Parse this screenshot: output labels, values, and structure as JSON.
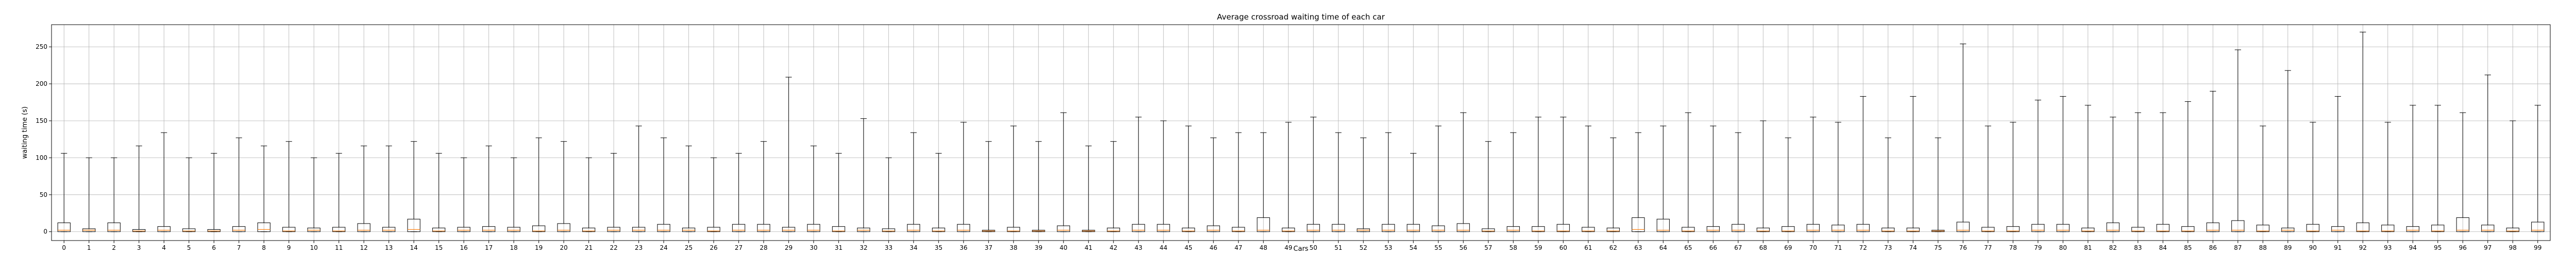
{
  "chart_data": {
    "type": "boxplot",
    "title": "Average crossroad waiting time of each car",
    "xlabel": "Cars",
    "ylabel": "waiting time (s)",
    "ylim": [
      -12,
      280
    ],
    "yticks": [
      0,
      50,
      100,
      150,
      200,
      250
    ],
    "grid": true,
    "colors": {
      "box": "#000000",
      "median": "#ff7f0e",
      "grid": "#b0b0b0",
      "axis": "#000000"
    },
    "categories": [
      "0",
      "1",
      "2",
      "3",
      "4",
      "5",
      "6",
      "7",
      "8",
      "9",
      "10",
      "11",
      "12",
      "13",
      "14",
      "15",
      "16",
      "17",
      "18",
      "19",
      "20",
      "21",
      "22",
      "23",
      "24",
      "25",
      "26",
      "27",
      "28",
      "29",
      "30",
      "31",
      "32",
      "33",
      "34",
      "35",
      "36",
      "37",
      "38",
      "39",
      "40",
      "41",
      "42",
      "43",
      "44",
      "45",
      "46",
      "47",
      "48",
      "49",
      "50",
      "51",
      "52",
      "53",
      "54",
      "55",
      "56",
      "57",
      "58",
      "59",
      "60",
      "61",
      "62",
      "63",
      "64",
      "65",
      "66",
      "67",
      "68",
      "69",
      "70",
      "71",
      "72",
      "73",
      "74",
      "75",
      "76",
      "77",
      "78",
      "79",
      "80",
      "81",
      "82",
      "83",
      "84",
      "85",
      "86",
      "87",
      "88",
      "89",
      "90",
      "91",
      "92",
      "93",
      "94",
      "95",
      "96",
      "97",
      "98",
      "99"
    ],
    "medians": [
      2,
      2,
      2,
      1,
      2,
      1,
      1,
      2,
      3,
      1,
      2,
      1,
      2,
      2,
      3,
      1,
      2,
      2,
      2,
      1,
      2,
      1,
      2,
      2,
      2,
      2,
      1,
      2,
      2,
      2,
      2,
      1,
      2,
      1,
      2,
      1,
      2,
      1,
      1,
      1,
      2,
      1,
      1,
      2,
      2,
      1,
      2,
      1,
      2,
      1,
      2,
      2,
      2,
      2,
      2,
      2,
      2,
      1,
      2,
      1,
      1,
      1,
      1,
      3,
      2,
      1,
      2,
      2,
      1,
      1,
      2,
      2,
      2,
      1,
      1,
      1,
      2,
      1,
      1,
      2,
      2,
      1,
      2,
      1,
      1,
      1,
      2,
      2,
      1,
      2,
      1,
      2,
      1,
      1,
      2,
      1,
      2,
      2,
      1,
      2
    ],
    "q3": [
      12,
      4,
      12,
      3,
      7,
      4,
      3,
      7,
      12,
      6,
      5,
      6,
      11,
      6,
      17,
      5,
      6,
      7,
      6,
      8,
      11,
      5,
      6,
      6,
      10,
      5,
      6,
      10,
      10,
      6,
      10,
      7,
      5,
      4,
      10,
      5,
      10,
      2,
      6,
      2,
      8,
      2,
      5,
      10,
      10,
      5,
      8,
      6,
      19,
      5,
      10,
      10,
      4,
      10,
      10,
      8,
      11,
      4,
      7,
      7,
      10,
      6,
      5,
      19,
      17,
      6,
      7,
      10,
      5,
      7,
      10,
      9,
      10,
      5,
      5,
      2,
      13,
      6,
      7,
      10,
      10,
      5,
      12,
      6,
      10,
      7,
      12,
      15,
      9,
      5,
      10,
      7,
      12,
      9,
      7,
      9,
      19,
      9,
      5,
      13
    ],
    "whisker_high": [
      106,
      100,
      100,
      116,
      134,
      100,
      106,
      127,
      116,
      122,
      100,
      106,
      116,
      116,
      122,
      106,
      100,
      116,
      100,
      127,
      122,
      100,
      106,
      143,
      127,
      116,
      100,
      106,
      122,
      209,
      116,
      106,
      153,
      100,
      134,
      106,
      148,
      122,
      143,
      122,
      161,
      116,
      122,
      155,
      150,
      143,
      127,
      134,
      134,
      148,
      155,
      134,
      127,
      134,
      106,
      143,
      161,
      122,
      134,
      155,
      155,
      143,
      127,
      134,
      143,
      161,
      143,
      134,
      150,
      127,
      155,
      148,
      183,
      127,
      183,
      127,
      254,
      143,
      148,
      178,
      183,
      171,
      155,
      161,
      161,
      176,
      190,
      246,
      143,
      218,
      148,
      183,
      270,
      148,
      171,
      171,
      161,
      212,
      150,
      171
    ],
    "whisker_low": [
      0,
      0,
      0,
      0,
      0,
      0,
      0,
      0,
      0,
      0,
      0,
      0,
      0,
      0,
      0,
      0,
      0,
      0,
      0,
      0,
      0,
      0,
      0,
      0,
      0,
      0,
      0,
      0,
      0,
      0,
      0,
      0,
      0,
      0,
      0,
      0,
      0,
      0,
      0,
      0,
      0,
      0,
      0,
      0,
      0,
      0,
      0,
      0,
      0,
      0,
      0,
      0,
      0,
      0,
      0,
      0,
      0,
      0,
      0,
      0,
      0,
      0,
      0,
      0,
      0,
      0,
      0,
      0,
      0,
      0,
      0,
      0,
      0,
      0,
      0,
      0,
      0,
      0,
      0,
      0,
      0,
      0,
      0,
      0,
      0,
      0,
      0,
      0,
      0,
      0,
      0,
      0,
      0,
      0,
      0,
      0,
      0,
      0,
      0,
      0
    ]
  }
}
